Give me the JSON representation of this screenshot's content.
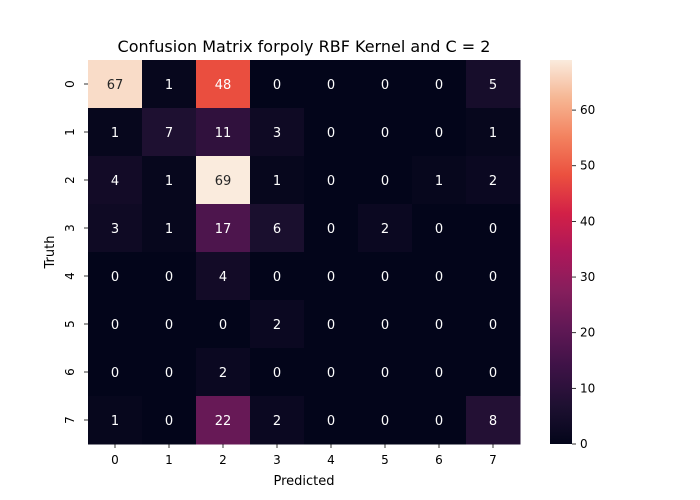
{
  "chart_data": {
    "type": "heatmap",
    "title": "Confusion Matrix forpoly RBF Kernel and C = 2",
    "xlabel": "Predicted",
    "ylabel": "Truth",
    "x_categories": [
      "0",
      "1",
      "2",
      "3",
      "4",
      "5",
      "6",
      "7"
    ],
    "y_categories": [
      "0",
      "1",
      "2",
      "3",
      "4",
      "5",
      "6",
      "7"
    ],
    "values": [
      [
        67,
        1,
        48,
        0,
        0,
        0,
        0,
        5
      ],
      [
        1,
        7,
        11,
        3,
        0,
        0,
        0,
        1
      ],
      [
        4,
        1,
        69,
        1,
        0,
        0,
        1,
        2
      ],
      [
        3,
        1,
        17,
        6,
        0,
        2,
        0,
        0
      ],
      [
        0,
        0,
        4,
        0,
        0,
        0,
        0,
        0
      ],
      [
        0,
        0,
        0,
        2,
        0,
        0,
        0,
        0
      ],
      [
        0,
        0,
        2,
        0,
        0,
        0,
        0,
        0
      ],
      [
        1,
        0,
        22,
        2,
        0,
        0,
        0,
        8
      ]
    ],
    "colormap": "rocket",
    "vmin": 0,
    "vmax": 69,
    "colorbar_ticks": [
      "0",
      "10",
      "20",
      "30",
      "40",
      "50",
      "60"
    ],
    "grid": false
  }
}
